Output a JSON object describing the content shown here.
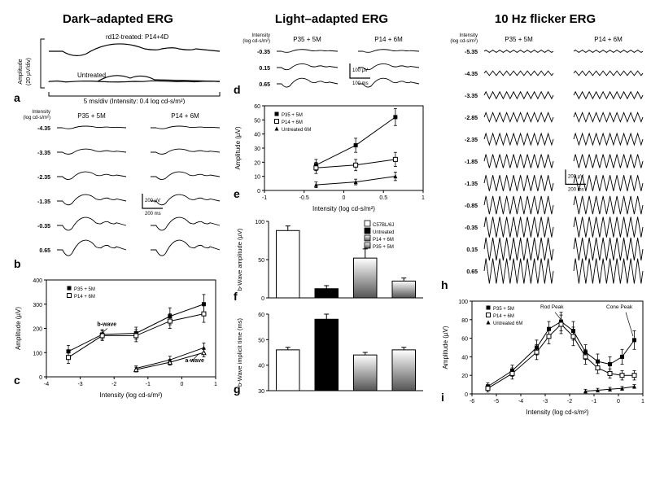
{
  "col_titles": [
    "Dark–adapted ERG",
    "Light–adapted ERG",
    "10 Hz flicker ERG"
  ],
  "colors": {
    "bg": "#ffffff",
    "fg": "#000000",
    "axis": "#000000",
    "grad_top": "#ffffff",
    "grad_bot": "#666666"
  },
  "fonts": {
    "title": 15,
    "tiny": 7,
    "axis": 8,
    "label": 9
  },
  "panel_a": {
    "label": "a",
    "trace_labels": [
      "rd12-treated: P14+4D",
      "Untreated"
    ],
    "y_axis": "Amplitude\n(20 µV/div)",
    "x_axis": "5 ms/div (Intensity: 0.4 log cd-s/m²)"
  },
  "panel_b": {
    "label": "b",
    "intensity_label": "Intensity\n(log cd-s/m²)",
    "intensities": [
      "-4.35",
      "-3.35",
      "-2.35",
      "-1.35",
      "-0.35",
      "0.65"
    ],
    "columns": [
      "P35 + 5M",
      "P14 + 6M"
    ],
    "scalebar_y": "200 µV",
    "scalebar_x": "200 ms"
  },
  "panel_c": {
    "label": "c",
    "ylabel": "Amplitude (µV)",
    "xlabel": "Intensity (log cd-s/m²)",
    "ylim": [
      0,
      400
    ],
    "ytick": [
      0,
      100,
      200,
      300,
      400
    ],
    "xlim": [
      -4,
      1
    ],
    "xtick": [
      -4,
      -3,
      -2,
      -1,
      0,
      1
    ],
    "legend": [
      "P35 + 5M",
      "P14 + 6M"
    ],
    "annotations": [
      "b-wave",
      "a-wave"
    ],
    "series": {
      "p14_b": {
        "marker": "square-filled",
        "x": [
          -3.35,
          -2.35,
          -1.35,
          -0.35,
          0.65
        ],
        "y": [
          105,
          175,
          180,
          250,
          300
        ],
        "err": [
          25,
          20,
          25,
          35,
          40
        ]
      },
      "p35_b": {
        "marker": "square-open",
        "x": [
          -3.35,
          -2.35,
          -1.35,
          -0.35,
          0.65
        ],
        "y": [
          80,
          170,
          170,
          230,
          260
        ],
        "err": [
          25,
          20,
          25,
          30,
          35
        ]
      },
      "p14_a": {
        "marker": "triangle-filled",
        "x": [
          -1.35,
          -0.35,
          0.65
        ],
        "y": [
          35,
          70,
          120
        ],
        "err": [
          10,
          15,
          20
        ]
      },
      "p35_a": {
        "marker": "triangle-open",
        "x": [
          -1.35,
          -0.35,
          0.65
        ],
        "y": [
          30,
          60,
          100
        ],
        "err": [
          10,
          12,
          18
        ]
      }
    }
  },
  "panel_d": {
    "label": "d",
    "intensity_label": "Intensity\n(log cd-s/m²)",
    "intensities": [
      "-0.35",
      "0.15",
      "0.65"
    ],
    "columns": [
      "P35 + 5M",
      "P14 + 6M"
    ],
    "scalebar_y": "100 µV",
    "scalebar_x": "100 ms"
  },
  "panel_e": {
    "label": "e",
    "ylabel": "Amplitude (µV)",
    "xlabel": "Intensity (log cd-s/m²)",
    "ylim": [
      0,
      60
    ],
    "ytick": [
      0,
      10,
      20,
      30,
      40,
      50,
      60
    ],
    "xlim": [
      -1,
      1
    ],
    "xtick": [
      -1.0,
      -0.5,
      0.0,
      0.5,
      1.0
    ],
    "legend": [
      "P35 + 5M",
      "P14 + 6M",
      "Untreated 6M"
    ],
    "series": {
      "p14": {
        "marker": "square-filled",
        "x": [
          -0.35,
          0.15,
          0.65
        ],
        "y": [
          18,
          32,
          52
        ],
        "err": [
          4,
          5,
          6
        ]
      },
      "p35": {
        "marker": "square-open",
        "x": [
          -0.35,
          0.15,
          0.65
        ],
        "y": [
          16,
          18,
          22
        ],
        "err": [
          4,
          4,
          5
        ]
      },
      "untr": {
        "marker": "triangle-filled",
        "x": [
          -0.35,
          0.15,
          0.65
        ],
        "y": [
          4,
          6,
          10
        ],
        "err": [
          2,
          2,
          3
        ]
      }
    }
  },
  "panel_f": {
    "label": "f",
    "ylabel": "b-Wave amplitude (µV)",
    "ylim": [
      0,
      100
    ],
    "ytick": [
      0,
      50,
      100
    ],
    "legend": [
      "C57BL/6J",
      "Untreated",
      "P14 + 6M",
      "P35 + 5M"
    ],
    "bars": [
      {
        "fill": "white",
        "y": 88,
        "err": 6
      },
      {
        "fill": "black",
        "y": 12,
        "err": 4
      },
      {
        "fill": "gradient",
        "y": 52,
        "err": 12
      },
      {
        "fill": "gradient",
        "y": 22,
        "err": 4
      }
    ]
  },
  "panel_g": {
    "label": "g",
    "ylabel": "b-Wave implicit time (ms)",
    "ylim": [
      30,
      60
    ],
    "ytick": [
      30,
      40,
      50,
      60
    ],
    "bars": [
      {
        "fill": "white",
        "y": 46,
        "err": 1
      },
      {
        "fill": "black",
        "y": 58,
        "err": 2
      },
      {
        "fill": "gradient",
        "y": 44,
        "err": 1
      },
      {
        "fill": "gradient",
        "y": 46,
        "err": 1
      }
    ]
  },
  "panel_h": {
    "label": "h",
    "intensity_label": "Intensity\n(log cd-s/m²)",
    "intensities": [
      "-5.35",
      "-4.35",
      "-3.35",
      "-2.85",
      "-2.35",
      "-1.85",
      "-1.35",
      "-0.85",
      "-0.35",
      "0.15",
      "0.65"
    ],
    "columns": [
      "P35 + 5M",
      "P14 + 6M"
    ],
    "scalebar_y": "200 µV",
    "scalebar_x": "200 ms"
  },
  "panel_i": {
    "label": "i",
    "ylabel": "Amplitude (µV)",
    "xlabel": "Intensity (log cd-s/m²)",
    "ylim": [
      0,
      100
    ],
    "ytick": [
      0,
      20,
      40,
      60,
      80,
      100
    ],
    "xlim": [
      -6,
      1
    ],
    "xtick": [
      -6,
      -5,
      -4,
      -3,
      -2,
      -1,
      0,
      1
    ],
    "legend": [
      "P35 + 5M",
      "P14 + 6M",
      "Untreated 6M"
    ],
    "annotations": [
      "Rod Peak",
      "Cone Peak"
    ],
    "series": {
      "p14": {
        "marker": "square-filled",
        "x": [
          -5.35,
          -4.35,
          -3.35,
          -2.85,
          -2.35,
          -1.85,
          -1.35,
          -0.85,
          -0.35,
          0.15,
          0.65
        ],
        "y": [
          8,
          25,
          50,
          70,
          78,
          68,
          45,
          35,
          32,
          40,
          58
        ],
        "err": [
          4,
          6,
          8,
          8,
          10,
          10,
          8,
          8,
          8,
          8,
          10
        ]
      },
      "p35": {
        "marker": "square-open",
        "x": [
          -5.35,
          -4.35,
          -3.35,
          -2.85,
          -2.35,
          -1.85,
          -1.35,
          -0.85,
          -0.35,
          0.15,
          0.65
        ],
        "y": [
          6,
          22,
          45,
          62,
          75,
          62,
          40,
          28,
          22,
          20,
          20
        ],
        "err": [
          4,
          6,
          8,
          8,
          10,
          10,
          8,
          6,
          5,
          5,
          5
        ]
      },
      "untr": {
        "marker": "triangle-filled",
        "x": [
          -1.35,
          -0.85,
          -0.35,
          0.15,
          0.65
        ],
        "y": [
          3,
          4,
          5,
          6,
          8
        ],
        "err": [
          2,
          2,
          2,
          2,
          2
        ]
      }
    }
  }
}
